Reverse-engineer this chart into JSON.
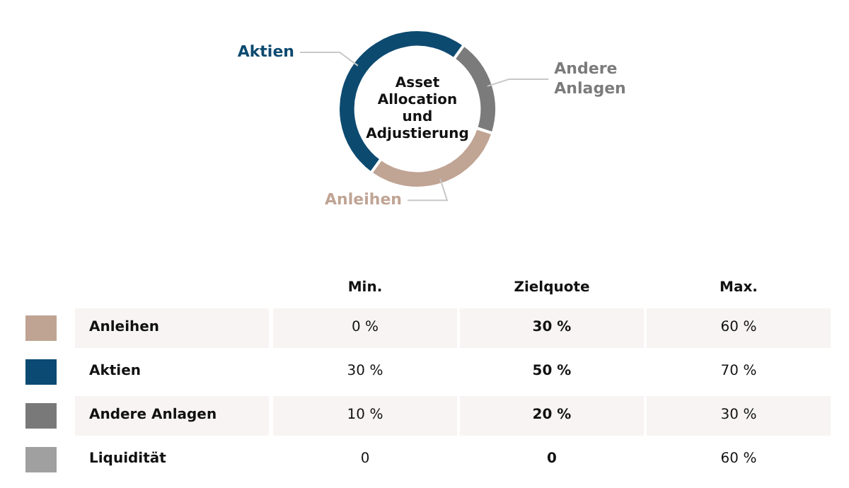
{
  "chart_data": [
    {
      "type": "donut",
      "title": "Asset Allocation und Adjustierung",
      "categories": [
        "Andere Anlagen",
        "Anleihen",
        "Aktien"
      ],
      "values": [
        20,
        30,
        50
      ],
      "colors": [
        "#7b7b7b",
        "#c0a494",
        "#0d4a70"
      ]
    },
    {
      "type": "other",
      "categories": [
        "Min.",
        "Zielquote",
        "Max."
      ],
      "y_categories": [
        "Anleihen",
        "Aktien",
        "Andere Anlagen",
        "Liquidität"
      ],
      "colors": [
        "#bfa393",
        "#0b4a72",
        "#797979",
        "#a0a0a0"
      ],
      "cell_labels": [
        [
          "0 %",
          "30 %",
          "60 %"
        ],
        [
          "30 %",
          "50 %",
          "70 %"
        ],
        [
          "10 %",
          "20 %",
          "30 %"
        ],
        [
          "0",
          "0",
          "60 %"
        ]
      ]
    }
  ]
}
